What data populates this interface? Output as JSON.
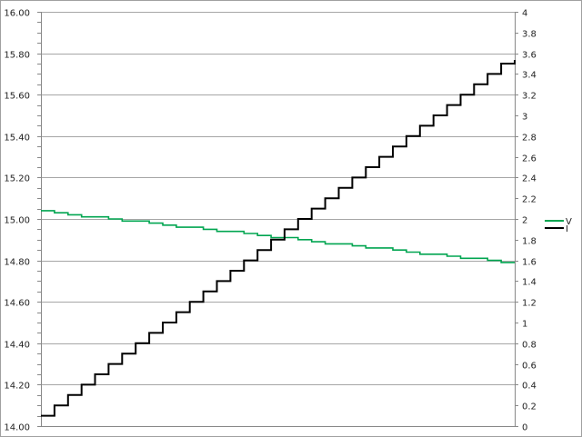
{
  "chart_data": {
    "type": "line",
    "title": "",
    "xlabel": "",
    "ylabel": "",
    "grid": true,
    "legend_position": "right",
    "y_left": {
      "range": [
        14.0,
        16.0
      ],
      "ticks": [
        "14.00",
        "14.20",
        "14.40",
        "14.60",
        "14.80",
        "15.00",
        "15.20",
        "15.40",
        "15.60",
        "15.80",
        "16.00"
      ]
    },
    "y_right": {
      "range": [
        0,
        4
      ],
      "ticks": [
        "0",
        "0.2",
        "0.4",
        "0.6",
        "0.8",
        "1",
        "1.2",
        "1.4",
        "1.6",
        "1.8",
        "2",
        "2.2",
        "2.4",
        "2.6",
        "2.8",
        "3",
        "3.2",
        "3.4",
        "3.6",
        "3.8",
        "4"
      ]
    },
    "series": [
      {
        "name": "V",
        "axis": "left",
        "color": "#00a550",
        "values": [
          15.04,
          15.03,
          15.02,
          15.01,
          15.01,
          15.0,
          14.99,
          14.99,
          14.98,
          14.97,
          14.96,
          14.96,
          14.95,
          14.94,
          14.94,
          14.93,
          14.92,
          14.91,
          14.91,
          14.9,
          14.89,
          14.88,
          14.88,
          14.87,
          14.86,
          14.86,
          14.85,
          14.84,
          14.83,
          14.83,
          14.82,
          14.81,
          14.81,
          14.8,
          14.79
        ]
      },
      {
        "name": "I",
        "axis": "right",
        "color": "#000000",
        "shape": "step",
        "values": [
          0.1,
          0.2,
          0.3,
          0.4,
          0.5,
          0.6,
          0.7,
          0.8,
          0.9,
          1.0,
          1.1,
          1.2,
          1.3,
          1.4,
          1.5,
          1.6,
          1.7,
          1.8,
          1.9,
          2.0,
          2.1,
          2.2,
          2.3,
          2.4,
          2.5,
          2.6,
          2.7,
          2.8,
          2.9,
          3.0,
          3.1,
          3.2,
          3.3,
          3.4,
          3.5
        ]
      }
    ]
  }
}
